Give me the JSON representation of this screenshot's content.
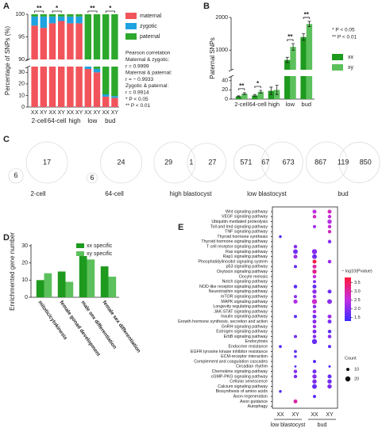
{
  "chart_data": [
    {
      "panel": "A",
      "type": "stacked_bar_broken",
      "ylabel": "Percentage of SNPs (%)",
      "categories": [
        "XX",
        "XY",
        "XX",
        "XY",
        "XX",
        "XY",
        "XX",
        "XY",
        "XX",
        "XY"
      ],
      "groups": [
        "2-cell",
        "64-cell",
        "high",
        "low",
        "bud"
      ],
      "series": [
        {
          "name": "maternal",
          "color": "#f2545b",
          "values": [
            97.5,
            97,
            98,
            98.5,
            98,
            98,
            33,
            30,
            9,
            8
          ]
        },
        {
          "name": "zygotic",
          "color": "#1fa2e0",
          "values": [
            2,
            2.5,
            1.5,
            1,
            1.5,
            1.5,
            3,
            3,
            2,
            1.5
          ]
        },
        {
          "name": "paternal",
          "color": "#2ca82c",
          "values": [
            0.5,
            0.5,
            0.5,
            0.5,
            0.5,
            0.5,
            64,
            67,
            89,
            90.5
          ]
        }
      ],
      "ylim": [
        0,
        100
      ],
      "ybreak": [
        35,
        90
      ],
      "yticks": [
        0,
        10,
        20,
        30,
        90,
        95,
        100
      ],
      "significance": [
        "**",
        "*",
        null,
        "**",
        "*"
      ],
      "annotations": [
        "Pearson correlation",
        "Maternal & zygotic:",
        "r = 0.9999",
        "Maternal & paternal:",
        "r = − 0.9933",
        "Zygotic & paternal:",
        "r = 0.9914",
        "*    P < 0.05",
        "**  P < 0.01"
      ]
    },
    {
      "panel": "B",
      "type": "grouped_bar_broken",
      "ylabel": "Paternal SNPs",
      "categories": [
        "2-cell",
        "64-cell",
        "high",
        "low",
        "bud"
      ],
      "series": [
        {
          "name": "xx",
          "color": "#1e9a1e",
          "values": [
            6,
            8,
            18,
            700,
            1400
          ],
          "errors": [
            1,
            2,
            8,
            80,
            100
          ]
        },
        {
          "name": "xy",
          "color": "#5cc05c",
          "values": [
            12,
            16,
            20,
            1100,
            1800
          ],
          "errors": [
            2,
            3,
            10,
            100,
            80
          ]
        }
      ],
      "ylim": [
        0,
        2000
      ],
      "ybreak": [
        50,
        400
      ],
      "yticks": [
        0,
        20,
        40,
        1000,
        2000
      ],
      "significance": [
        "**",
        "*",
        null,
        "**",
        "**"
      ],
      "annotations": [
        "*    P < 0.05",
        "**  P < 0.01"
      ]
    },
    {
      "panel": "C",
      "type": "venn",
      "sets": [
        {
          "name": "2-cell",
          "left": 6,
          "shared": null,
          "right": 17
        },
        {
          "name": "64-cell",
          "left": 6,
          "shared": null,
          "right": 24
        },
        {
          "name": "high blastocyst",
          "left": 29,
          "shared": 1,
          "right": 27
        },
        {
          "name": "low blastocyst",
          "left": 571,
          "shared": 67,
          "right": 673
        },
        {
          "name": "bud",
          "left": 867,
          "shared": 119,
          "right": 850
        }
      ]
    },
    {
      "panel": "D",
      "type": "grouped_bar",
      "ylabel": "Enrichmented gene number",
      "categories": [
        "mitotic/cytokinesis",
        "female gonad development",
        "male sex differentiation",
        "female sex differentiation"
      ],
      "series": [
        {
          "name": "xx specific",
          "color": "#1e9a1e",
          "values": [
            10,
            15,
            24,
            18
          ]
        },
        {
          "name": "xy specific",
          "color": "#5cc05c",
          "values": [
            14,
            9,
            22,
            12
          ]
        }
      ],
      "ylim": [
        0,
        30
      ],
      "yticks": [
        0,
        10,
        20,
        30
      ]
    },
    {
      "panel": "E",
      "type": "dot_plot",
      "categories": [
        "Wnt signaling pathway",
        "VEGF signaling pathway",
        "Ubiquitin mediated proteolysis",
        "Toll and Imd signaling pathway",
        "TNF signaling pathway",
        "Thyroid hormone synthesis",
        "Thyroid hormone signaling pathway",
        "T cell receptor signaling pathway",
        "Ras signaling pathway",
        "Rap1 signaling pathway",
        "Phosphatidylinositol signaling system",
        "p53 signaling pathway",
        "Oxytocin signaling pathway",
        "Oocyte meiosis",
        "Notch signaling pathway",
        "NOD-like receptor signaling pathway",
        "Neurotrophin signaling pathway",
        "mTOR signaling pathway",
        "MAPK signaling pathway",
        "Longevity regulating pathway",
        "JAK-STAT signaling pathway",
        "Insulin signaling pathway",
        "Growth hormone synthesis, secretion and action",
        "GnRH signaling pathway",
        "Estrogen signaling pathway",
        "ErbB signaling pathway",
        "Endocytosis",
        "Endocrine resistance",
        "EGFR tyrosine kinase inhibitor resistance",
        "ECM-receptor interaction",
        "Complement and coagulation cascades",
        "Circadian rhythm",
        "Chemokine signaling pathway",
        "cGMP-PKG signaling pathway",
        "Cellular senescence",
        "Calcium signaling pathway",
        "Biosynthesis of amino acids",
        "Axon regeneration",
        "Axon guidance",
        "Autophagy"
      ],
      "series": [
        {
          "name": "XX",
          "group": "low blastocyst",
          "values": [
            null,
            null,
            null,
            null,
            null,
            1.5,
            null,
            null,
            null,
            null,
            null,
            null,
            null,
            null,
            null,
            null,
            null,
            null,
            null,
            null,
            null,
            null,
            null,
            null,
            null,
            null,
            null,
            1.6,
            null,
            null,
            null,
            null,
            null,
            null,
            null,
            null,
            1.5,
            null,
            null,
            null
          ],
          "counts": [
            null,
            null,
            null,
            null,
            null,
            8,
            null,
            null,
            null,
            null,
            null,
            null,
            null,
            null,
            null,
            null,
            null,
            null,
            null,
            null,
            null,
            null,
            null,
            null,
            null,
            null,
            null,
            9,
            null,
            null,
            null,
            null,
            null,
            null,
            null,
            null,
            8,
            null,
            null,
            null
          ]
        },
        {
          "name": "XY",
          "group": "low blastocyst",
          "values": [
            null,
            null,
            null,
            null,
            null,
            null,
            null,
            2.0,
            1.8,
            2.2,
            null,
            1.7,
            null,
            null,
            null,
            1.6,
            null,
            2.0,
            2.4,
            null,
            null,
            1.6,
            null,
            null,
            null,
            1.8,
            null,
            null,
            1.6,
            1.7,
            null,
            1.5,
            2.0,
            1.9,
            null,
            null,
            null,
            null,
            3.0,
            null
          ],
          "counts": [
            null,
            null,
            null,
            null,
            null,
            null,
            null,
            12,
            18,
            14,
            null,
            10,
            null,
            null,
            null,
            12,
            null,
            10,
            15,
            null,
            null,
            10,
            null,
            null,
            null,
            10,
            null,
            null,
            9,
            8,
            null,
            5,
            12,
            12,
            null,
            null,
            null,
            null,
            14,
            null
          ]
        },
        {
          "name": "XX",
          "group": "bud",
          "values": [
            2.5,
            2.8,
            null,
            2.2,
            null,
            null,
            null,
            null,
            2.0,
            1.8,
            3.7,
            3.0,
            3.2,
            2.6,
            2.0,
            1.7,
            2.1,
            2.2,
            2.7,
            2.0,
            2.3,
            1.8,
            2.0,
            2.2,
            1.9,
            2.0,
            1.7,
            null,
            null,
            null,
            1.6,
            null,
            1.8,
            2.0,
            1.9,
            1.7,
            null,
            1.6,
            null,
            null
          ],
          "counts": [
            14,
            12,
            null,
            10,
            null,
            null,
            null,
            null,
            20,
            18,
            14,
            14,
            16,
            12,
            10,
            14,
            16,
            12,
            20,
            12,
            12,
            14,
            14,
            12,
            14,
            12,
            20,
            null,
            null,
            null,
            10,
            null,
            14,
            16,
            16,
            18,
            null,
            10,
            null,
            null
          ]
        },
        {
          "name": "XY",
          "group": "bud",
          "values": [
            2.8,
            2.6,
            2.4,
            2.6,
            2.8,
            null,
            2.0,
            null,
            null,
            null,
            2.2,
            null,
            null,
            null,
            null,
            null,
            1.8,
            null,
            2.0,
            null,
            null,
            2.2,
            1.9,
            null,
            1.6,
            2.0,
            null,
            1.6,
            null,
            null,
            null,
            1.5,
            null,
            1.7,
            1.8,
            1.9,
            null,
            null,
            null,
            null
          ],
          "counts": [
            14,
            12,
            16,
            12,
            12,
            null,
            12,
            null,
            null,
            null,
            12,
            null,
            null,
            null,
            null,
            null,
            14,
            null,
            18,
            null,
            null,
            14,
            14,
            null,
            12,
            12,
            null,
            10,
            null,
            null,
            null,
            6,
            null,
            14,
            16,
            16,
            null,
            null,
            null,
            null
          ]
        }
      ],
      "color_label": "− log10(Pvalue)",
      "clim": [
        1.3,
        3.8
      ],
      "cticks": [
        1.5,
        {
          "value": 2,
          "label": "2.0"
        },
        2.5,
        {
          "value": 3,
          "label": "3.0"
        },
        3.5
      ],
      "cmap": [
        "#3a2cff",
        "#c42ee0",
        "#ff1a3a"
      ],
      "size_label": "Count",
      "size_ticks": [
        10,
        20
      ]
    }
  ]
}
